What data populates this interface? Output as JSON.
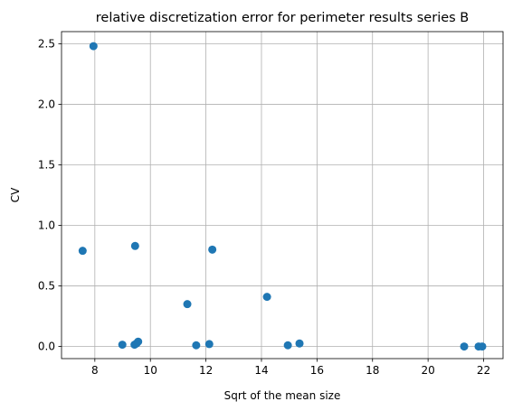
{
  "chart_data": {
    "type": "scatter",
    "title": "relative discretization error for perimeter results series B",
    "xlabel": "Sqrt of the mean size",
    "ylabel": "CV",
    "xlim": [
      6.8,
      22.7
    ],
    "ylim": [
      -0.1,
      2.6
    ],
    "xticks": [
      8,
      10,
      12,
      14,
      16,
      18,
      20,
      22
    ],
    "xtick_labels": [
      "8",
      "10",
      "12",
      "14",
      "16",
      "18",
      "20",
      "22"
    ],
    "yticks": [
      0.0,
      0.5,
      1.0,
      1.5,
      2.0,
      2.5
    ],
    "ytick_labels": [
      "0.0",
      "0.5",
      "1.0",
      "1.5",
      "2.0",
      "2.5"
    ],
    "grid": true,
    "marker_color": "#1f77b4",
    "series": [
      {
        "x": [
          7.95,
          7.56,
          9.45,
          12.23,
          11.33,
          14.2,
          8.99,
          9.43,
          9.5,
          9.56,
          11.65,
          12.12,
          14.95,
          15.37,
          21.3,
          21.82,
          21.95
        ],
        "y": [
          2.48,
          0.79,
          0.83,
          0.8,
          0.35,
          0.41,
          0.015,
          0.015,
          0.025,
          0.04,
          0.01,
          0.02,
          0.01,
          0.025,
          0.0,
          0.0,
          0.0
        ]
      }
    ]
  }
}
